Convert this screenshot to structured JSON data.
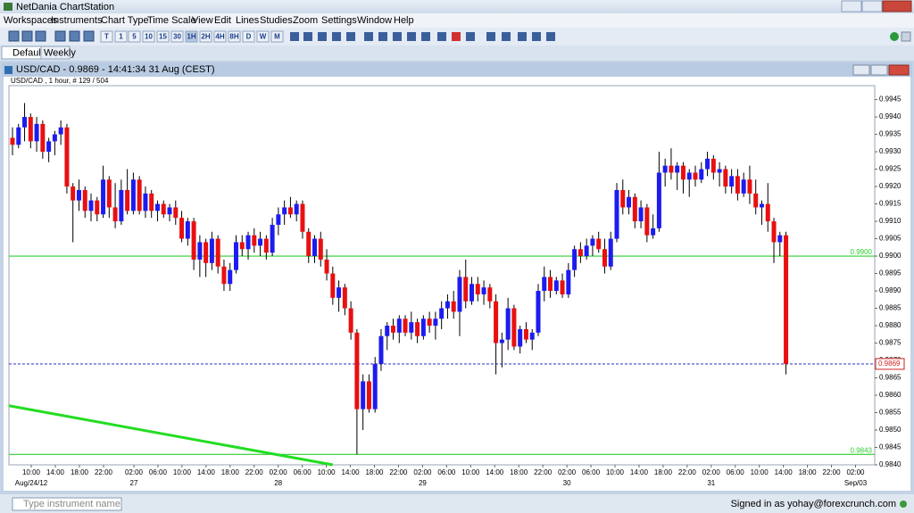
{
  "window": {
    "title": "NetDania ChartStation"
  },
  "menu": [
    "Workspaces",
    "Instruments",
    "Chart Type",
    "Time Scale",
    "View",
    "Edit",
    "Lines",
    "Studies",
    "Zoom",
    "Settings",
    "Window",
    "Help"
  ],
  "toolbar": {
    "intervals": [
      "T",
      "1",
      "5",
      "10",
      "15",
      "30",
      "1H",
      "2H",
      "4H",
      "8H",
      "D",
      "W",
      "M"
    ]
  },
  "tabs": [
    "Default",
    "Weekly"
  ],
  "panel": {
    "title": "USD/CAD - 0.9869 - 14:41:34  31 Aug (CEST)"
  },
  "chart_data": {
    "type": "candlestick",
    "title": "USD/CAD , 1 hour, # 129 / 504",
    "up_color": "#1c1cf0",
    "down_color": "#e81010",
    "ylim": [
      0.984,
      0.9949
    ],
    "yticks": [
      {
        "value": 0.984,
        "label": "0.9840"
      },
      0.9845,
      {
        "value": 0.985,
        "label": "0.9850"
      },
      0.9855,
      {
        "value": 0.986,
        "label": "0.9860"
      },
      0.9865,
      {
        "value": 0.987,
        "label": "0.9870"
      },
      0.9875,
      {
        "value": 0.988,
        "label": "0.9880"
      },
      0.9885,
      {
        "value": 0.989,
        "label": "0.9890"
      },
      0.9895,
      {
        "value": 0.99,
        "label": "0.9900"
      },
      0.9905,
      {
        "value": 0.991,
        "label": "0.9910"
      },
      0.9915,
      {
        "value": 0.992,
        "label": "0.9920"
      },
      0.9925,
      {
        "value": 0.993,
        "label": "0.9930"
      },
      0.9935,
      {
        "value": 0.994,
        "label": "0.9940"
      },
      0.9945
    ],
    "xticks": [
      "10:00",
      "14:00",
      "18:00",
      "22:00",
      "02:00",
      "06:00",
      "10:00",
      "14:00",
      "18:00",
      "22:00",
      "02:00",
      "06:00",
      "10:00",
      "14:00",
      "18:00",
      "22:00",
      "02:00",
      "06:00",
      "10:00",
      "14:00",
      "18:00",
      "22:00",
      "02:00",
      "06:00",
      "10:00",
      "14:00",
      "18:00",
      "22:00",
      "02:00",
      "06:00",
      "10:00",
      "14:00",
      "18:00",
      "22:00",
      "02:00"
    ],
    "date_labels": [
      "Aug/24/12",
      "27",
      "28",
      "29",
      "30",
      "31",
      "Sep/03"
    ],
    "levels": [
      {
        "value": 0.99,
        "label": "0.9900",
        "color": "#2ecc2e",
        "style": "solid"
      },
      {
        "value": 0.9843,
        "color": "#2ecc2e",
        "style": "solid"
      },
      {
        "value": 0.9869,
        "color": "#4444cc",
        "style": "dashed",
        "current": true
      }
    ],
    "trendline": {
      "color": "#22dd22",
      "points": [
        {
          "index": 0,
          "value": 0.9857
        },
        {
          "index": 53,
          "value": 0.984
        }
      ]
    },
    "candles": [
      [
        0.9934,
        0.9937,
        0.9929,
        0.9932
      ],
      [
        0.9932,
        0.9938,
        0.9931,
        0.9937
      ],
      [
        0.9937,
        0.9944,
        0.9933,
        0.994
      ],
      [
        0.994,
        0.9941,
        0.9931,
        0.9933
      ],
      [
        0.9933,
        0.994,
        0.993,
        0.9938
      ],
      [
        0.9938,
        0.9939,
        0.9928,
        0.993
      ],
      [
        0.993,
        0.9934,
        0.9927,
        0.9933
      ],
      [
        0.9933,
        0.9936,
        0.9929,
        0.9935
      ],
      [
        0.9935,
        0.9939,
        0.9932,
        0.9937
      ],
      [
        0.9937,
        0.9938,
        0.9918,
        0.992
      ],
      [
        0.992,
        0.9921,
        0.9904,
        0.9916
      ],
      [
        0.9916,
        0.9922,
        0.9913,
        0.9919
      ],
      [
        0.9919,
        0.992,
        0.9911,
        0.9913
      ],
      [
        0.9913,
        0.9918,
        0.991,
        0.9916
      ],
      [
        0.9916,
        0.9917,
        0.991,
        0.9912
      ],
      [
        0.9912,
        0.9926,
        0.9911,
        0.9922
      ],
      [
        0.9922,
        0.9923,
        0.9911,
        0.9914
      ],
      [
        0.9914,
        0.9921,
        0.9908,
        0.991
      ],
      [
        0.991,
        0.9922,
        0.9909,
        0.9919
      ],
      [
        0.9919,
        0.9925,
        0.9912,
        0.9913
      ],
      [
        0.9913,
        0.9924,
        0.9912,
        0.9922
      ],
      [
        0.9922,
        0.9923,
        0.9912,
        0.9913
      ],
      [
        0.9913,
        0.992,
        0.9911,
        0.9918
      ],
      [
        0.9918,
        0.9919,
        0.9911,
        0.9913
      ],
      [
        0.9913,
        0.9916,
        0.991,
        0.9915
      ],
      [
        0.9915,
        0.9916,
        0.9911,
        0.9912
      ],
      [
        0.9912,
        0.9915,
        0.991,
        0.9914
      ],
      [
        0.9914,
        0.9916,
        0.9909,
        0.9911
      ],
      [
        0.9911,
        0.9913,
        0.9904,
        0.9905
      ],
      [
        0.9905,
        0.9911,
        0.9903,
        0.991
      ],
      [
        0.991,
        0.9911,
        0.9896,
        0.9899
      ],
      [
        0.9899,
        0.9906,
        0.9894,
        0.9904
      ],
      [
        0.9904,
        0.9905,
        0.9894,
        0.9898
      ],
      [
        0.9898,
        0.9907,
        0.9896,
        0.9905
      ],
      [
        0.9905,
        0.9906,
        0.9895,
        0.9897
      ],
      [
        0.9897,
        0.9899,
        0.989,
        0.9892
      ],
      [
        0.9892,
        0.9898,
        0.989,
        0.9896
      ],
      [
        0.9896,
        0.9906,
        0.9895,
        0.9904
      ],
      [
        0.9904,
        0.9906,
        0.99,
        0.9902
      ],
      [
        0.9902,
        0.9907,
        0.9899,
        0.9906
      ],
      [
        0.9906,
        0.9908,
        0.9901,
        0.9903
      ],
      [
        0.9903,
        0.9907,
        0.99,
        0.9905
      ],
      [
        0.9905,
        0.9906,
        0.9899,
        0.9901
      ],
      [
        0.9901,
        0.9911,
        0.99,
        0.9909
      ],
      [
        0.9909,
        0.9914,
        0.9906,
        0.9912
      ],
      [
        0.9912,
        0.9916,
        0.9909,
        0.9914
      ],
      [
        0.9914,
        0.9917,
        0.9911,
        0.9912
      ],
      [
        0.9912,
        0.9916,
        0.991,
        0.9915
      ],
      [
        0.9915,
        0.9916,
        0.9905,
        0.9907
      ],
      [
        0.9907,
        0.9908,
        0.9898,
        0.99
      ],
      [
        0.99,
        0.9906,
        0.9898,
        0.9905
      ],
      [
        0.9905,
        0.9907,
        0.9897,
        0.9899
      ],
      [
        0.9899,
        0.9902,
        0.9893,
        0.9895
      ],
      [
        0.9895,
        0.9897,
        0.9886,
        0.9888
      ],
      [
        0.9888,
        0.9893,
        0.9884,
        0.9891
      ],
      [
        0.9891,
        0.9892,
        0.9883,
        0.9885
      ],
      [
        0.9885,
        0.9887,
        0.9876,
        0.9878
      ],
      [
        0.9878,
        0.9879,
        0.9843,
        0.9856
      ],
      [
        0.9856,
        0.9866,
        0.985,
        0.9864
      ],
      [
        0.9864,
        0.9866,
        0.9855,
        0.9856
      ],
      [
        0.9856,
        0.9871,
        0.9855,
        0.9869
      ],
      [
        0.9869,
        0.9879,
        0.9867,
        0.9877
      ],
      [
        0.9877,
        0.9881,
        0.9873,
        0.988
      ],
      [
        0.988,
        0.9882,
        0.9876,
        0.9878
      ],
      [
        0.9878,
        0.9883,
        0.9875,
        0.9882
      ],
      [
        0.9882,
        0.9883,
        0.9877,
        0.9878
      ],
      [
        0.9878,
        0.9884,
        0.9876,
        0.9881
      ],
      [
        0.9881,
        0.9882,
        0.9875,
        0.9877
      ],
      [
        0.9877,
        0.9883,
        0.9876,
        0.9882
      ],
      [
        0.9882,
        0.9884,
        0.9878,
        0.988
      ],
      [
        0.988,
        0.9884,
        0.9876,
        0.9882
      ],
      [
        0.9882,
        0.9887,
        0.9879,
        0.9885
      ],
      [
        0.9885,
        0.9889,
        0.9882,
        0.9887
      ],
      [
        0.9887,
        0.989,
        0.9882,
        0.9884
      ],
      [
        0.9884,
        0.9896,
        0.9877,
        0.9894
      ],
      [
        0.9894,
        0.9899,
        0.9885,
        0.9887
      ],
      [
        0.9887,
        0.9894,
        0.9886,
        0.9892
      ],
      [
        0.9892,
        0.9894,
        0.9887,
        0.9889
      ],
      [
        0.9889,
        0.9893,
        0.9886,
        0.9891
      ],
      [
        0.9891,
        0.9892,
        0.9885,
        0.9887
      ],
      [
        0.9887,
        0.9889,
        0.9866,
        0.9875
      ],
      [
        0.9875,
        0.9878,
        0.9868,
        0.9876
      ],
      [
        0.9876,
        0.9888,
        0.9873,
        0.9885
      ],
      [
        0.9885,
        0.9886,
        0.9873,
        0.9874
      ],
      [
        0.9874,
        0.988,
        0.9872,
        0.9879
      ],
      [
        0.9879,
        0.9881,
        0.9875,
        0.9876
      ],
      [
        0.9876,
        0.9879,
        0.9873,
        0.9878
      ],
      [
        0.9878,
        0.9892,
        0.9877,
        0.989
      ],
      [
        0.989,
        0.9897,
        0.9887,
        0.9894
      ],
      [
        0.9894,
        0.9896,
        0.9888,
        0.989
      ],
      [
        0.989,
        0.9894,
        0.9889,
        0.9893
      ],
      [
        0.9893,
        0.9895,
        0.9888,
        0.9889
      ],
      [
        0.9889,
        0.9898,
        0.9888,
        0.9896
      ],
      [
        0.9896,
        0.9903,
        0.9894,
        0.9902
      ],
      [
        0.9902,
        0.9904,
        0.9898,
        0.99
      ],
      [
        0.99,
        0.9905,
        0.9899,
        0.9903
      ],
      [
        0.9903,
        0.9906,
        0.99,
        0.9905
      ],
      [
        0.9905,
        0.9907,
        0.9901,
        0.9902
      ],
      [
        0.9902,
        0.9905,
        0.9895,
        0.9897
      ],
      [
        0.9897,
        0.9907,
        0.9896,
        0.9905
      ],
      [
        0.9905,
        0.9921,
        0.9904,
        0.9919
      ],
      [
        0.9919,
        0.9922,
        0.9912,
        0.9914
      ],
      [
        0.9914,
        0.9919,
        0.9912,
        0.9917
      ],
      [
        0.9917,
        0.9918,
        0.9908,
        0.991
      ],
      [
        0.991,
        0.9916,
        0.9908,
        0.9914
      ],
      [
        0.9914,
        0.9915,
        0.9904,
        0.9906
      ],
      [
        0.9906,
        0.9912,
        0.9905,
        0.9908
      ],
      [
        0.9908,
        0.993,
        0.9907,
        0.9924
      ],
      [
        0.9924,
        0.9928,
        0.992,
        0.9926
      ],
      [
        0.9926,
        0.9931,
        0.9922,
        0.9924
      ],
      [
        0.9924,
        0.9927,
        0.9919,
        0.9926
      ],
      [
        0.9926,
        0.9927,
        0.9918,
        0.9922
      ],
      [
        0.9922,
        0.9925,
        0.9917,
        0.9924
      ],
      [
        0.9924,
        0.9926,
        0.992,
        0.9922
      ],
      [
        0.9922,
        0.9927,
        0.9921,
        0.9925
      ],
      [
        0.9925,
        0.993,
        0.9923,
        0.9928
      ],
      [
        0.9928,
        0.9929,
        0.9922,
        0.9924
      ],
      [
        0.9924,
        0.9927,
        0.992,
        0.9925
      ],
      [
        0.9925,
        0.9926,
        0.9918,
        0.992
      ],
      [
        0.992,
        0.9925,
        0.9918,
        0.9923
      ],
      [
        0.9923,
        0.9925,
        0.9916,
        0.9918
      ],
      [
        0.9918,
        0.9924,
        0.9917,
        0.9922
      ],
      [
        0.9922,
        0.9926,
        0.9915,
        0.9918
      ],
      [
        0.9918,
        0.9922,
        0.9912,
        0.9914
      ],
      [
        0.9914,
        0.9916,
        0.9909,
        0.9915
      ],
      [
        0.9915,
        0.9921,
        0.9907,
        0.991
      ],
      [
        0.991,
        0.9911,
        0.9898,
        0.9904
      ],
      [
        0.9904,
        0.9907,
        0.99,
        0.9906
      ],
      [
        0.9906,
        0.9907,
        0.9866,
        0.9869
      ]
    ]
  },
  "status": {
    "search_placeholder": "Type instrument name",
    "signed_in": "Signed in as yohay@forexcrunch.com"
  }
}
